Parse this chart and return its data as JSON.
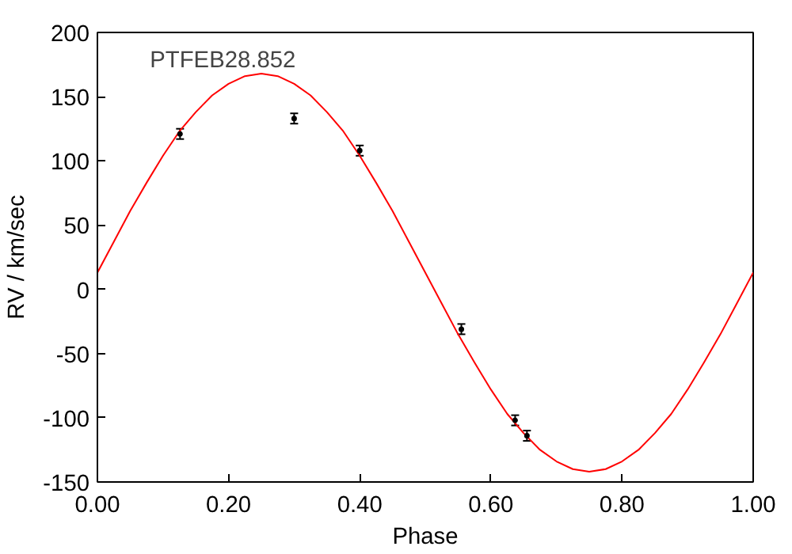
{
  "chart_data": {
    "type": "scatter",
    "xlabel": "Phase",
    "ylabel": "RV / km/sec",
    "annotations": [
      "PTFEB28.852"
    ],
    "xlim": [
      0,
      1
    ],
    "ylim": [
      -150,
      200
    ],
    "xticks": [
      {
        "value": 0,
        "label": "0.00"
      },
      {
        "value": 0.2,
        "label": "0.20"
      },
      {
        "value": 0.4,
        "label": "0.40"
      },
      {
        "value": 0.6,
        "label": "0.60"
      },
      {
        "value": 0.8,
        "label": "0.80"
      },
      {
        "value": 1,
        "label": "1.00"
      }
    ],
    "yticks": [
      -150,
      -100,
      -50,
      0,
      50,
      100,
      150,
      200
    ],
    "grid": false,
    "series": [
      {
        "type": "line",
        "color": "#ff0000",
        "x": [
          0,
          0.025,
          0.05,
          0.075,
          0.1,
          0.125,
          0.15,
          0.175,
          0.2,
          0.225,
          0.25,
          0.275,
          0.3,
          0.325,
          0.35,
          0.375,
          0.4,
          0.425,
          0.45,
          0.475,
          0.5,
          0.525,
          0.55,
          0.575,
          0.6,
          0.625,
          0.65,
          0.675,
          0.7,
          0.725,
          0.75,
          0.775,
          0.8,
          0.825,
          0.85,
          0.875,
          0.9,
          0.925,
          0.95,
          0.975,
          1
        ],
        "values": [
          13,
          37,
          61,
          83,
          104,
          123,
          138,
          151,
          160,
          166,
          168,
          166,
          160,
          151,
          138,
          123,
          104,
          83,
          61,
          37,
          13,
          -11,
          -35,
          -57,
          -78,
          -97,
          -112,
          -125,
          -134,
          -140,
          -142,
          -140,
          -134,
          -125,
          -112,
          -97,
          -78,
          -57,
          -35,
          -11,
          13
        ]
      },
      {
        "color": "#000000",
        "x": [
          0.126,
          0.3,
          0.4,
          0.555,
          0.637,
          0.655
        ],
        "values": [
          121,
          133,
          108,
          -31,
          -102,
          -114
        ],
        "errors": [
          4,
          4,
          4,
          4,
          4,
          4
        ]
      }
    ]
  }
}
